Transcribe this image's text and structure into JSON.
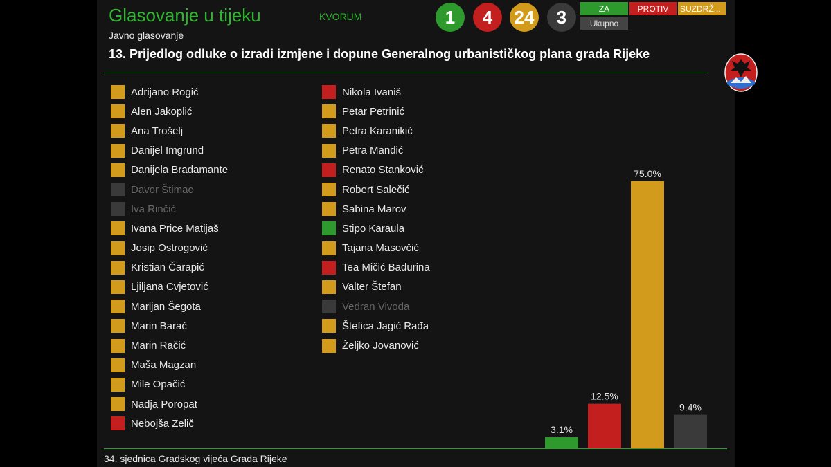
{
  "header": {
    "title": "Glasovanje u tijeku",
    "kvorum": "KVORUM",
    "subtitle": "Javno glasovanje",
    "motion": "13. Prijedlog odluke o izradi izmjene i dopune Generalnog urbanističkog plana grada Rijeke"
  },
  "counts": {
    "za": "1",
    "protiv": "4",
    "suzdrzan": "24",
    "ukupno": "3"
  },
  "legend": {
    "za": "ZA",
    "protiv": "PROTIV",
    "suzdrzan": "SUZDRŽ...",
    "ukupno": "Ukupno"
  },
  "colors": {
    "za": "#2e9a2e",
    "protiv": "#c41f1f",
    "suzdrzan": "#d39b1b",
    "absent": "#3a3a3a",
    "accent": "#2fb52f"
  },
  "voters_left": [
    {
      "name": "Adrijano Rogić",
      "vote": "suzdrzan"
    },
    {
      "name": "Alen Jakoplić",
      "vote": "suzdrzan"
    },
    {
      "name": "Ana Trošelj",
      "vote": "suzdrzan"
    },
    {
      "name": "Danijel Imgrund",
      "vote": "suzdrzan"
    },
    {
      "name": "Danijela Bradamante",
      "vote": "suzdrzan"
    },
    {
      "name": "Davor Štimac",
      "vote": "absent"
    },
    {
      "name": "Iva Rinčić",
      "vote": "absent"
    },
    {
      "name": "Ivana Price Matijaš",
      "vote": "suzdrzan"
    },
    {
      "name": "Josip Ostrogović",
      "vote": "suzdrzan"
    },
    {
      "name": "Kristian Čarapić",
      "vote": "suzdrzan"
    },
    {
      "name": "Ljiljana Cvjetović",
      "vote": "suzdrzan"
    },
    {
      "name": "Marijan Šegota",
      "vote": "suzdrzan"
    },
    {
      "name": "Marin Barać",
      "vote": "suzdrzan"
    },
    {
      "name": "Marin Račić",
      "vote": "suzdrzan"
    },
    {
      "name": "Maša Magzan",
      "vote": "suzdrzan"
    },
    {
      "name": "Mile Opačić",
      "vote": "suzdrzan"
    },
    {
      "name": "Nadja Poropat",
      "vote": "suzdrzan"
    },
    {
      "name": "Nebojša Zelič",
      "vote": "protiv"
    }
  ],
  "voters_right": [
    {
      "name": "Nikola Ivaniš",
      "vote": "protiv"
    },
    {
      "name": "Petar Petrinić",
      "vote": "suzdrzan"
    },
    {
      "name": "Petra Karanikić",
      "vote": "suzdrzan"
    },
    {
      "name": "Petra Mandić",
      "vote": "suzdrzan"
    },
    {
      "name": "Renato Stanković",
      "vote": "protiv"
    },
    {
      "name": "Robert Salečić",
      "vote": "suzdrzan"
    },
    {
      "name": "Sabina Marov",
      "vote": "suzdrzan"
    },
    {
      "name": "Stipo Karaula",
      "vote": "za"
    },
    {
      "name": "Tajana Masovčić",
      "vote": "suzdrzan"
    },
    {
      "name": "Tea Mičić Badurina",
      "vote": "protiv"
    },
    {
      "name": "Valter Štefan",
      "vote": "suzdrzan"
    },
    {
      "name": "Vedran Vivoda",
      "vote": "absent"
    },
    {
      "name": "Štefica Jagić Rađa",
      "vote": "suzdrzan"
    },
    {
      "name": "Željko Jovanović",
      "vote": "suzdrzan"
    }
  ],
  "chart_data": {
    "type": "bar",
    "categories": [
      "za",
      "protiv",
      "suzdrzan",
      "ukupno"
    ],
    "values": [
      3.1,
      12.5,
      75.0,
      9.4
    ],
    "value_labels": [
      "3.1%",
      "12.5%",
      "75.0%",
      "9.4%"
    ],
    "colors": [
      "#2e9a2e",
      "#c41f1f",
      "#d39b1b",
      "#3a3a3a"
    ],
    "ylim": [
      0,
      80
    ]
  },
  "footer": "34. sjednica Gradskog vijeća Grada Rijeke"
}
